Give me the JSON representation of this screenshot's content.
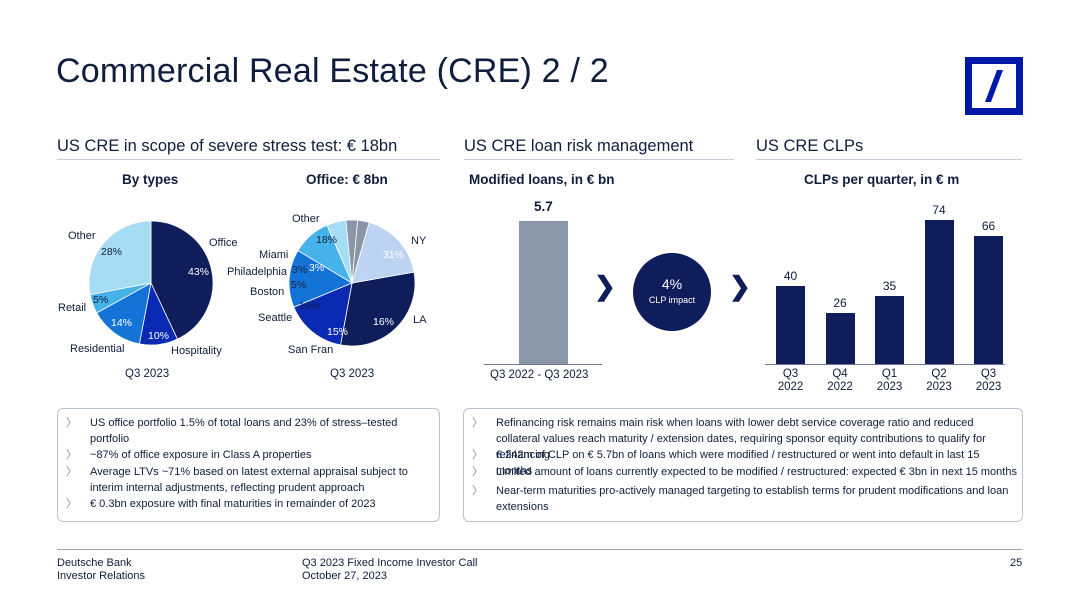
{
  "page": {
    "title": "Commercial Real Estate (CRE) 2 / 2"
  },
  "colors": {
    "navy": "#0f1e5a",
    "royal": "#0a2ab4",
    "mid": "#1473d6",
    "sky": "#45b2ea",
    "pale": "#a6dcf4",
    "paleblue": "#bcd4f2",
    "grey": "#8a96a8",
    "bar_grey": "#8a97a8"
  },
  "sections": {
    "stress": {
      "title": "US CRE in scope of severe stress test: € 18bn"
    },
    "risk": {
      "title": "US CRE loan risk management"
    },
    "clps": {
      "title": "US CRE CLPs"
    }
  },
  "types_chart": {
    "title": "By types",
    "caption": "Q3 2023",
    "labels": [
      {
        "name": "Office",
        "pct": "43%"
      },
      {
        "name": "Hospitality",
        "pct": "10%"
      },
      {
        "name": "Residential",
        "pct": "14%"
      },
      {
        "name": "Retail",
        "pct": "5%"
      },
      {
        "name": "Other",
        "pct": "28%"
      }
    ]
  },
  "office_chart": {
    "title": "Office: € 8bn",
    "caption": "Q3 2023",
    "labels": [
      {
        "name": "NY",
        "pct": "31%"
      },
      {
        "name": "LA",
        "pct": "16%"
      },
      {
        "name": "San Fran",
        "pct": "15%"
      },
      {
        "name": "Seattle",
        "pct": "10%"
      },
      {
        "name": "Boston",
        "pct": "5%"
      },
      {
        "name": "Philadelphia",
        "pct": "3%"
      },
      {
        "name": "Miami",
        "pct": "3%"
      },
      {
        "name": "Other",
        "pct": "18%"
      }
    ]
  },
  "modified_chart": {
    "title": "Modified loans, in € bn",
    "value_label": "5.7",
    "category": "Q3 2022 - Q3 2023"
  },
  "clp_impact": {
    "value": "4%",
    "label": "CLP impact"
  },
  "clp_chart": {
    "title": "CLPs per quarter, in € m",
    "categories": [
      [
        "Q3",
        "2022"
      ],
      [
        "Q4",
        "2022"
      ],
      [
        "Q1",
        "2023"
      ],
      [
        "Q2",
        "2023"
      ],
      [
        "Q3",
        "2023"
      ]
    ],
    "value_labels": [
      "40",
      "26",
      "35",
      "74",
      "66"
    ]
  },
  "chart_data": [
    {
      "type": "pie",
      "title": "By types",
      "caption": "Q3 2023",
      "labels": [
        "Office",
        "Hospitality",
        "Residential",
        "Retail",
        "Other"
      ],
      "values": [
        43,
        10,
        14,
        5,
        28
      ]
    },
    {
      "type": "pie",
      "title": "Office: € 8bn",
      "caption": "Q3 2023",
      "labels": [
        "NY",
        "LA",
        "San Fran",
        "Seattle",
        "Boston",
        "Philadelphia",
        "Miami",
        "Other"
      ],
      "values": [
        31,
        16,
        15,
        10,
        5,
        3,
        3,
        18
      ]
    },
    {
      "type": "bar",
      "title": "Modified loans, in € bn",
      "categories": [
        "Q3 2022 - Q3 2023"
      ],
      "values": [
        5.7
      ]
    },
    {
      "type": "bar",
      "title": "CLPs per quarter, in € m",
      "categories": [
        "Q3 2022",
        "Q4 2022",
        "Q1 2023",
        "Q2 2023",
        "Q3 2023"
      ],
      "values": [
        40,
        26,
        35,
        74,
        66
      ]
    }
  ],
  "left_bullets": [
    "US office portfolio 1.5% of total loans and 23% of stress–tested portfolio",
    "~87% of office exposure in Class A properties",
    "Average LTVs ~71% based on latest external appraisal subject to interim internal adjustments, reflecting prudent approach",
    "€ 0.3bn exposure with final maturities in remainder of 2023"
  ],
  "right_bullets": [
    "Refinancing risk remains main risk when loans with lower debt service coverage ratio and reduced collateral values reach maturity / extension dates, requiring sponsor equity contributions to qualify for refinancing",
    "€ 242m of CLP on € 5.7bn of loans which were modified / restructured or went into default in last 15 months",
    "Limited amount of loans currently expected to be modified / restructured: expected € 3bn in next 15 months",
    "Near-term maturities pro-actively managed targeting to establish terms for prudent modifications and loan extensions"
  ],
  "bullet_marker": "〉",
  "chevron": "❯",
  "footer": {
    "company": "Deutsche Bank",
    "dept": "Investor Relations",
    "event": "Q3 2023 Fixed Income Investor Call",
    "date": "October 27, 2023",
    "page": "25"
  }
}
